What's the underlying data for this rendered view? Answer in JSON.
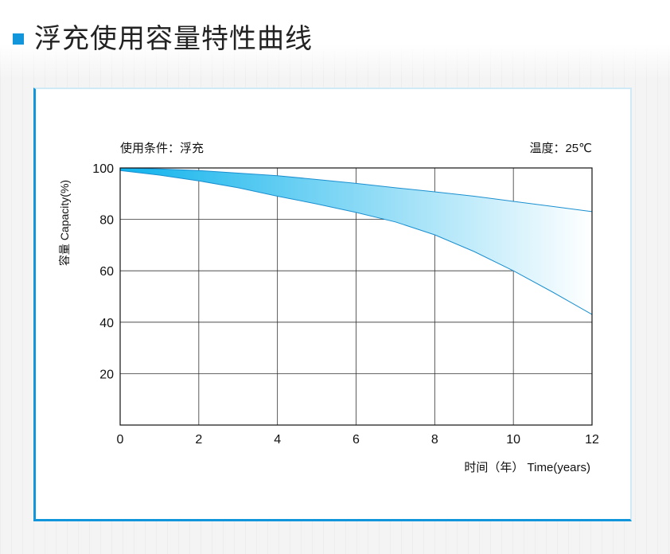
{
  "page": {
    "title": "浮充使用容量特性曲线"
  },
  "chart_data": {
    "type": "area",
    "condition_label": "使用条件：浮充",
    "temperature_label": "温度：25℃",
    "ylabel": "容量 Capacity(%)",
    "xlabel": "时间（年） Time(years)",
    "xlim": [
      0,
      12
    ],
    "ylim": [
      0,
      100
    ],
    "x_ticks": [
      0,
      2,
      4,
      6,
      8,
      10,
      12
    ],
    "y_ticks": [
      20,
      40,
      60,
      80,
      100
    ],
    "grid": true,
    "series": [
      {
        "values": [
          [
            0,
            100
          ],
          [
            1,
            99.6
          ],
          [
            2,
            99
          ],
          [
            3,
            98
          ],
          [
            4,
            97
          ],
          [
            5,
            95.5
          ],
          [
            6,
            94
          ],
          [
            7,
            92.3
          ],
          [
            8,
            90.7
          ],
          [
            9,
            89
          ],
          [
            10,
            87
          ],
          [
            11,
            85
          ],
          [
            12,
            83
          ]
        ]
      },
      {
        "values": [
          [
            0,
            99
          ],
          [
            1,
            97.2
          ],
          [
            2,
            95
          ],
          [
            3,
            92.3
          ],
          [
            4,
            89
          ],
          [
            5,
            86
          ],
          [
            6,
            82.7
          ],
          [
            7,
            79
          ],
          [
            8,
            74
          ],
          [
            9,
            67.5
          ],
          [
            10,
            60
          ],
          [
            11,
            51.7
          ],
          [
            12,
            43
          ]
        ]
      }
    ],
    "fill_colors": [
      "#10b3ec",
      "#ffffff"
    ]
  }
}
